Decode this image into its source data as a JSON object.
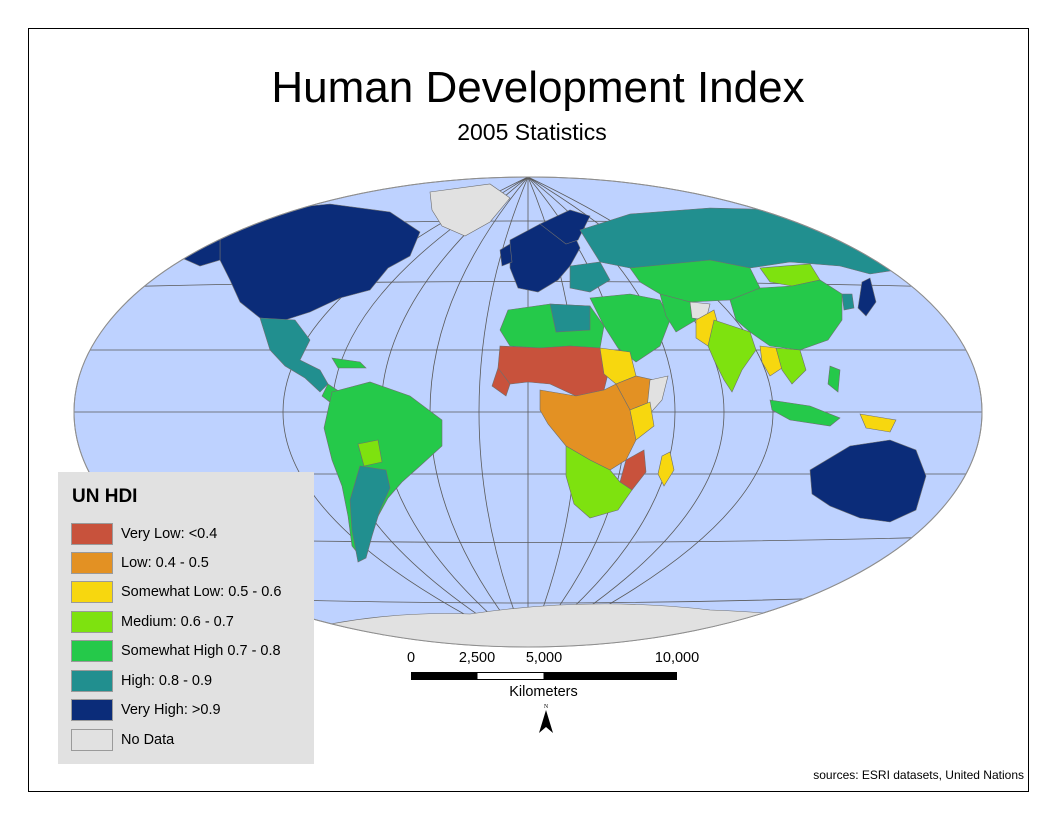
{
  "title": "Human Development Index",
  "subtitle": "2005 Statistics",
  "colors": {
    "ocean": "#bed2ff",
    "very_low": "#c8523c",
    "low": "#e39123",
    "somewhat_low": "#f7d70f",
    "medium": "#7ee20f",
    "somewhat_high": "#25c94a",
    "high": "#218f8f",
    "very_high": "#0b2c79",
    "no_data": "#e1e1e1"
  },
  "legend": {
    "title": "UN HDI",
    "items": [
      {
        "label": "Very Low: <0.4",
        "color": "#c8523c"
      },
      {
        "label": "Low: 0.4 - 0.5",
        "color": "#e39123"
      },
      {
        "label": "Somewhat Low: 0.5 - 0.6",
        "color": "#f7d70f"
      },
      {
        "label": "Medium: 0.6 - 0.7",
        "color": "#7ee20f"
      },
      {
        "label": "Somewhat High 0.7 - 0.8",
        "color": "#25c94a"
      },
      {
        "label": "High: 0.8 - 0.9",
        "color": "#218f8f"
      },
      {
        "label": "Very High: >0.9",
        "color": "#0b2c79"
      },
      {
        "label": "No Data",
        "color": "#e1e1e1"
      }
    ]
  },
  "scale": {
    "ticks": [
      "0",
      "2,500",
      "5,000",
      "10,000"
    ],
    "units": "Kilometers"
  },
  "north_arrow": {
    "label": "N"
  },
  "sources": "sources: ESRI datasets, United Nations"
}
